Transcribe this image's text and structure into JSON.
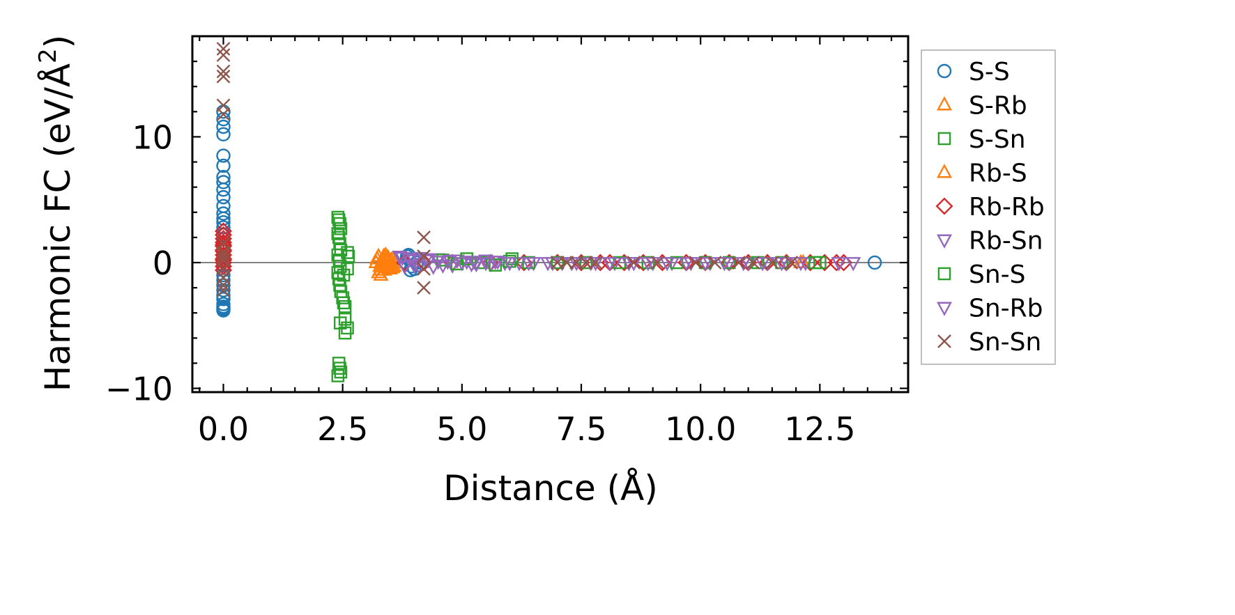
{
  "chart_data": {
    "type": "scatter",
    "title": "",
    "xlabel": "Distance (Å)",
    "ylabel_main": "Harmonic FC (eV/Å",
    "ylabel_sup": "2",
    "ylabel_close": ")",
    "xlim": [
      -0.65,
      14.35
    ],
    "ylim": [
      -10.3,
      18.0
    ],
    "xticks": [
      0.0,
      2.5,
      5.0,
      7.5,
      10.0,
      12.5
    ],
    "xtick_labels": [
      "0.0",
      "2.5",
      "5.0",
      "7.5",
      "10.0",
      "12.5"
    ],
    "yticks": [
      -10,
      0,
      10
    ],
    "ytick_labels": [
      "−10",
      "0",
      "10"
    ],
    "zero_line": 0,
    "legend_position": "outside-right",
    "series": [
      {
        "name": "S-S",
        "marker": "circle",
        "color": "#1f77b4",
        "x": [
          0.0,
          0.0,
          0.0,
          0.0,
          0.0,
          0.0,
          0.0,
          0.0,
          0.0,
          0.0,
          0.0,
          0.0,
          0.0,
          0.0,
          0.0,
          0.0,
          0.0,
          0.0,
          0.0,
          0.0,
          0.0,
          0.0,
          0.0,
          0.0,
          0.0,
          0.0,
          0.0,
          0.0,
          0.0,
          0.0,
          0.0,
          0.0,
          3.85,
          3.9,
          3.95,
          4.0,
          4.05,
          3.88,
          3.92,
          3.98,
          4.1,
          13.65
        ],
        "y": [
          12.0,
          11.4,
          10.8,
          10.2,
          8.5,
          7.7,
          6.8,
          6.4,
          5.8,
          5.2,
          4.5,
          3.9,
          3.5,
          3.2,
          2.8,
          2.2,
          1.6,
          1.0,
          0.4,
          -0.2,
          -0.6,
          -1.0,
          -1.4,
          -1.8,
          -2.2,
          -2.6,
          -2.9,
          -3.3,
          -3.6,
          -3.8,
          -3.7,
          -3.5,
          0.5,
          0.2,
          -0.3,
          -0.5,
          0.0,
          0.6,
          -0.6,
          0.3,
          -0.2,
          0.0
        ]
      },
      {
        "name": "S-Rb",
        "marker": "triangle-up",
        "color": "#ff7f0e",
        "x": [
          3.2,
          3.25,
          3.3,
          3.35,
          3.4,
          3.45,
          3.5,
          3.55,
          3.6,
          3.3,
          3.4,
          3.5,
          3.25,
          3.45,
          3.55,
          3.35,
          12.1
        ],
        "y": [
          0.0,
          0.5,
          -0.6,
          0.2,
          -0.3,
          0.4,
          -0.1,
          0.3,
          0.0,
          -1.0,
          0.6,
          -0.5,
          -0.8,
          0.1,
          -0.4,
          -0.2,
          0.0
        ]
      },
      {
        "name": "S-Sn",
        "marker": "square",
        "color": "#2ca02c",
        "x": [
          2.4,
          2.42,
          2.44,
          2.46,
          2.4,
          2.42,
          2.44,
          2.46,
          2.4,
          2.43,
          2.45,
          2.4,
          2.42,
          2.44,
          2.46,
          2.5,
          2.52,
          2.55,
          2.6,
          2.62,
          2.55,
          2.6,
          2.45,
          2.42,
          2.44,
          2.46,
          2.4,
          2.55,
          2.52,
          2.6
        ],
        "y": [
          3.6,
          3.4,
          3.1,
          2.7,
          2.3,
          2.0,
          1.5,
          1.0,
          0.6,
          0.2,
          -0.3,
          -0.8,
          -1.3,
          -1.8,
          -2.3,
          -2.8,
          -3.2,
          -3.5,
          -0.5,
          0.5,
          -4.5,
          -5.2,
          -4.8,
          -8.0,
          -8.4,
          -8.7,
          -9.0,
          -5.6,
          -1.0,
          0.8
        ]
      },
      {
        "name": "Rb-S",
        "marker": "triangle-up",
        "color": "#ff7f0e",
        "x": [
          3.22,
          3.28,
          3.32,
          3.38,
          3.42,
          3.48,
          3.52,
          3.58,
          3.36,
          3.44,
          3.5,
          12.15
        ],
        "y": [
          0.3,
          -0.3,
          0.1,
          -0.6,
          0.4,
          -0.2,
          0.2,
          -0.3,
          0.5,
          -0.4,
          0.0,
          0.0
        ]
      },
      {
        "name": "Rb-Rb",
        "marker": "diamond",
        "color": "#d62728",
        "x": [
          0.0,
          0.0,
          0.0,
          0.0,
          0.0,
          0.0,
          0.0,
          0.0,
          0.0,
          0.0,
          0.0,
          0.0,
          0.0,
          0.0,
          3.8,
          4.2,
          4.8,
          5.6,
          6.3,
          7.0,
          7.5,
          7.9,
          8.1,
          8.4,
          8.8,
          9.2,
          9.7,
          10.1,
          10.6,
          11.0,
          11.4,
          11.8,
          12.3,
          12.6,
          12.85,
          13.0
        ],
        "y": [
          2.5,
          2.2,
          1.9,
          1.6,
          1.3,
          1.0,
          0.6,
          0.3,
          0.0,
          -0.3,
          -0.6,
          1.4,
          0.9,
          0.2,
          0.0,
          0.0,
          0.0,
          0.0,
          0.0,
          0.0,
          0.0,
          0.0,
          0.0,
          0.0,
          0.0,
          0.0,
          0.0,
          0.0,
          0.0,
          0.0,
          0.0,
          0.0,
          0.0,
          0.0,
          0.0,
          0.0
        ]
      },
      {
        "name": "Rb-Sn",
        "marker": "triangle-down",
        "color": "#9467bd",
        "x": [
          3.7,
          3.9,
          4.1,
          4.3,
          4.5,
          4.7,
          4.9,
          5.1,
          5.3,
          5.5,
          5.7,
          5.9,
          6.2,
          6.5,
          6.8,
          7.1,
          7.4,
          7.8,
          8.2,
          8.6,
          9.0,
          9.4,
          9.8,
          10.2,
          10.6,
          11.0,
          11.4,
          11.8,
          12.2,
          3.8,
          4.0,
          4.4,
          4.8,
          5.2,
          5.6
        ],
        "y": [
          0.5,
          0.3,
          0.4,
          0.2,
          0.3,
          0.1,
          0.2,
          0.1,
          0.0,
          0.2,
          0.1,
          0.0,
          0.0,
          0.0,
          0.0,
          0.0,
          0.0,
          0.0,
          0.0,
          0.0,
          0.0,
          0.0,
          0.0,
          0.0,
          0.0,
          0.0,
          0.0,
          0.0,
          0.0,
          -0.3,
          -0.2,
          -0.3,
          -0.2,
          -0.1,
          -0.1
        ]
      },
      {
        "name": "Sn-S",
        "marker": "square",
        "color": "#2ca02c",
        "x": [
          4.6,
          4.9,
          5.1,
          5.4,
          5.7,
          6.0,
          6.05,
          6.4,
          7.0,
          7.6,
          8.3,
          8.9,
          9.5,
          10.1,
          10.6,
          11.2,
          11.7,
          12.4,
          12.5
        ],
        "y": [
          0.2,
          -0.1,
          0.3,
          0.0,
          -0.2,
          0.1,
          0.3,
          0.0,
          0.0,
          0.0,
          0.0,
          0.0,
          0.0,
          0.0,
          0.0,
          0.0,
          0.0,
          0.0,
          0.0
        ]
      },
      {
        "name": "Sn-Rb",
        "marker": "triangle-down",
        "color": "#9467bd",
        "x": [
          3.75,
          4.0,
          4.25,
          4.5,
          4.75,
          5.0,
          5.25,
          5.5,
          5.75,
          6.0,
          6.4,
          6.9,
          7.3,
          7.7,
          8.1,
          8.5,
          8.9,
          9.3,
          9.7,
          10.1,
          10.5,
          10.9,
          11.3,
          11.7,
          12.1,
          12.9,
          13.2,
          4.1,
          4.6,
          5.3
        ],
        "y": [
          0.4,
          0.2,
          0.3,
          0.1,
          0.2,
          0.0,
          0.1,
          0.0,
          0.1,
          0.0,
          0.0,
          0.0,
          0.0,
          0.0,
          0.0,
          0.0,
          0.0,
          0.0,
          0.0,
          0.0,
          0.0,
          0.0,
          0.0,
          0.0,
          0.0,
          0.0,
          0.0,
          -0.3,
          -0.2,
          -0.1
        ]
      },
      {
        "name": "Sn-Sn",
        "marker": "x",
        "color": "#8c564b",
        "x": [
          0.0,
          0.0,
          0.0,
          0.0,
          0.0,
          0.0,
          0.0,
          0.0,
          0.0,
          0.0,
          0.0,
          0.0,
          0.0,
          0.0,
          4.2,
          4.2,
          4.2,
          4.2,
          7.0,
          7.2,
          7.4,
          7.6,
          7.8,
          8.6,
          9.1,
          9.9,
          10.3,
          10.8,
          11.1,
          11.5,
          11.9
        ],
        "y": [
          17.0,
          16.5,
          15.2,
          14.8,
          12.5,
          11.8,
          1.5,
          0.8,
          0.2,
          -0.5,
          -1.2,
          -1.8,
          -2.2,
          0.5,
          2.0,
          0.5,
          -0.5,
          -2.0,
          0.0,
          0.0,
          0.0,
          0.0,
          0.0,
          0.0,
          0.0,
          0.0,
          0.0,
          0.0,
          0.0,
          0.0,
          0.0
        ]
      }
    ]
  }
}
